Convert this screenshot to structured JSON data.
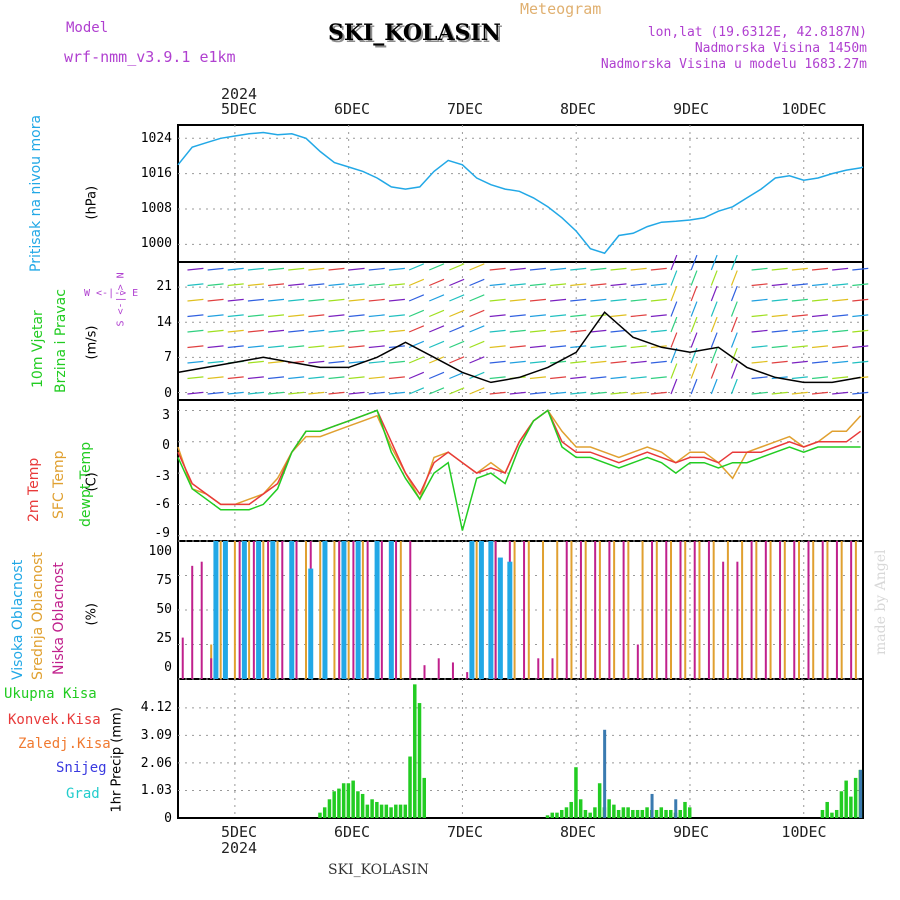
{
  "header": {
    "model_label": "Model",
    "model_name": "wrf-nmm_v3.9.1 e1km",
    "title": "SKI_KOLASIN",
    "subtitle": "Meteogram",
    "coords": "lon,lat (19.6312E, 42.8187N)",
    "elevation": "Nadmorska Visina 1450m",
    "model_elevation": "Nadmorska Visina u modelu 1683.27m",
    "footer": "SKI_KOLASIN",
    "watermark": "made by Angel"
  },
  "colors": {
    "pressure": "#22a8e6",
    "wind_label": "#22cc22",
    "temp2m": "#e83a3a",
    "sfc": "#e0a030",
    "dewpt": "#22cc22",
    "high_cloud": "#22a8e6",
    "mid_cloud": "#e0a030",
    "low_cloud": "#c0208c",
    "precip_total": "#22cc22",
    "convective": "#e83a3a",
    "freezing": "#f07a30",
    "snow": "#3a3ae0",
    "graupel": "#22cccc",
    "model_text": "#b040d0",
    "meteogram_text": "#e0b070"
  },
  "axis": {
    "year": "2024",
    "days": [
      "5DEC",
      "6DEC",
      "7DEC",
      "8DEC",
      "9DEC",
      "10DEC"
    ]
  },
  "panels": {
    "pressure": {
      "label": "Pritisak na nivou mora",
      "unit": "(hPa)",
      "ticks": [
        "1024",
        "1016",
        "1008",
        "1000"
      ]
    },
    "wind": {
      "label1": "10m Vjetar",
      "label2": "Brzina i Pravac",
      "unit": "(m/s)",
      "ticks": [
        "21",
        "14",
        "7",
        "0"
      ],
      "compass": "W  <-|->  E",
      "compass_v": "S <-|-> N"
    },
    "temp": {
      "label1": "2m Temp",
      "label2": "SFC Temp",
      "label3": "dewpt Temp",
      "unit": "(C)",
      "ticks": [
        "3",
        "0",
        "-3",
        "-6",
        "-9"
      ]
    },
    "cloud": {
      "label1": "Visoka Oblacnost",
      "label2": "Srednja Oblacnost",
      "label3": "Niska Oblacnost",
      "unit": "(%)",
      "ticks": [
        "100",
        "75",
        "50",
        "25",
        "0"
      ]
    },
    "precip": {
      "labels": [
        "Ukupna Kisa",
        "Konvek.Kisa",
        "Zaledj.Kisa",
        "Snijeg",
        "Grad"
      ],
      "unit": "1hr Precip (mm)",
      "ticks": [
        "4.12",
        "3.09",
        "2.06",
        "1.03",
        "0"
      ]
    }
  },
  "chart_data": [
    {
      "type": "line",
      "title": "Pritisak na nivou mora",
      "ylabel": "(hPa)",
      "x_unit": "hours since 2024-12-04 12:00",
      "ylim": [
        996,
        1027
      ],
      "series": [
        {
          "name": "Pritisak na nivou mora",
          "x": [
            0,
            3,
            6,
            9,
            12,
            15,
            18,
            21,
            24,
            27,
            30,
            33,
            36,
            39,
            42,
            45,
            48,
            51,
            54,
            57,
            60,
            63,
            66,
            69,
            72,
            75,
            78,
            81,
            84,
            87,
            90,
            93,
            96,
            99,
            102,
            105,
            108,
            111,
            114,
            117,
            120,
            123,
            126,
            129,
            132,
            135,
            138,
            141,
            144,
            144.5
          ],
          "y": [
            1018,
            1022,
            1023,
            1024,
            1024.5,
            1025,
            1025.3,
            1024.8,
            1025,
            1024,
            1021,
            1018.5,
            1017.5,
            1016.5,
            1015,
            1013,
            1012.5,
            1013,
            1016.5,
            1019,
            1018,
            1015,
            1013.5,
            1012.5,
            1012,
            1010.5,
            1008.5,
            1006,
            1003,
            999,
            998,
            1002,
            1002.5,
            1004,
            1005,
            1005.2,
            1005.5,
            1006,
            1007.5,
            1008.5,
            1010.5,
            1012.5,
            1015,
            1015.5,
            1014.5,
            1015,
            1016,
            1016.8,
            1017.3,
            1017.5
          ]
        }
      ]
    },
    {
      "type": "line",
      "title": "10m Vjetar Brzina i Pravac",
      "ylabel": "(m/s)",
      "x_unit": "hours since 2024-12-04 12:00",
      "ylim": [
        -1.5,
        26
      ],
      "series": [
        {
          "name": "10m Vjetar",
          "x": [
            0,
            6,
            12,
            18,
            24,
            30,
            36,
            42,
            48,
            54,
            60,
            66,
            72,
            78,
            84,
            90,
            96,
            102,
            108,
            114,
            120,
            126,
            132,
            138,
            144
          ],
          "y": [
            4,
            5,
            6,
            7,
            6,
            5,
            5,
            7,
            10,
            7,
            4,
            2,
            3,
            5,
            8,
            16,
            11,
            9,
            8,
            9,
            5,
            3,
            2,
            2,
            3
          ]
        }
      ]
    },
    {
      "type": "line",
      "title": "2m Temp / SFC Temp / dewpt Temp",
      "ylabel": "(C)",
      "x_unit": "hours since 2024-12-04 12:00",
      "ylim": [
        -9.5,
        4
      ],
      "series": [
        {
          "name": "2m Temp",
          "x": [
            0,
            3,
            6,
            9,
            12,
            15,
            18,
            21,
            24,
            27,
            30,
            33,
            36,
            39,
            42,
            45,
            48,
            51,
            54,
            57,
            60,
            63,
            66,
            69,
            72,
            75,
            78,
            81,
            84,
            87,
            90,
            93,
            96,
            99,
            102,
            105,
            108,
            111,
            114,
            117,
            120,
            123,
            126,
            129,
            132,
            135,
            138,
            141,
            144
          ],
          "y": [
            -1,
            -4,
            -5,
            -6,
            -6,
            -6,
            -5,
            -4,
            -1,
            1,
            1,
            1.5,
            2,
            2.5,
            3,
            0,
            -3,
            -5,
            -2,
            -1,
            -2,
            -3,
            -2.5,
            -3,
            0,
            2,
            3,
            0,
            -1,
            -1,
            -1.5,
            -2,
            -1.5,
            -1,
            -1.5,
            -2,
            -1.5,
            -1.5,
            -2,
            -1,
            -1,
            -1,
            -0.5,
            0,
            -0.5,
            0,
            0,
            0,
            1
          ]
        },
        {
          "name": "SFC Temp",
          "x": [
            0,
            3,
            6,
            9,
            12,
            15,
            18,
            21,
            24,
            27,
            30,
            33,
            36,
            39,
            42,
            45,
            48,
            51,
            54,
            57,
            60,
            63,
            66,
            69,
            72,
            75,
            78,
            81,
            84,
            87,
            90,
            93,
            96,
            99,
            102,
            105,
            108,
            111,
            114,
            117,
            120,
            123,
            126,
            129,
            132,
            135,
            138,
            141,
            144
          ],
          "y": [
            -0.5,
            -4.5,
            -5,
            -6,
            -6,
            -5.5,
            -5,
            -3.5,
            -1,
            0.5,
            0.5,
            1,
            1.5,
            2,
            2.5,
            -0.5,
            -3,
            -5.5,
            -1.5,
            -1,
            -2,
            -3,
            -2,
            -3,
            0,
            2,
            3,
            1,
            -0.5,
            -0.5,
            -1,
            -1.5,
            -1,
            -0.5,
            -1,
            -2,
            -1,
            -1,
            -2,
            -3.5,
            -1,
            -0.5,
            0,
            0.5,
            -0.5,
            0,
            1,
            1,
            2.5
          ]
        },
        {
          "name": "dewpt Temp",
          "x": [
            0,
            3,
            6,
            9,
            12,
            15,
            18,
            21,
            24,
            27,
            30,
            33,
            36,
            39,
            42,
            45,
            48,
            51,
            54,
            57,
            60,
            63,
            66,
            69,
            72,
            75,
            78,
            81,
            84,
            87,
            90,
            93,
            96,
            99,
            102,
            105,
            108,
            111,
            114,
            117,
            120,
            123,
            126,
            129,
            132,
            135,
            138,
            141,
            144
          ],
          "y": [
            -1.5,
            -4.5,
            -5.5,
            -6.5,
            -6.5,
            -6.5,
            -6,
            -4.5,
            -1,
            1,
            1,
            1.5,
            2,
            2.5,
            3,
            -1,
            -3.5,
            -5.5,
            -3,
            -2,
            -8.5,
            -3.5,
            -3,
            -4,
            -0.5,
            2,
            3,
            -0.5,
            -1.5,
            -1.5,
            -2,
            -2.5,
            -2,
            -1.5,
            -2,
            -3,
            -2,
            -2,
            -2.5,
            -2,
            -2,
            -1.5,
            -1,
            -0.5,
            -1,
            -0.5,
            -0.5,
            -0.5,
            -0.5
          ]
        }
      ]
    },
    {
      "type": "bar",
      "title": "Visoka / Srednja / Niska Oblacnost",
      "ylabel": "(%)",
      "x_unit": "hours since 2024-12-04 12:00",
      "ylim": [
        0,
        100
      ],
      "series": [
        {
          "name": "Visoka Oblacnost",
          "x": [
            8,
            10,
            14,
            17,
            20,
            24,
            28,
            31,
            35,
            38,
            42,
            45,
            62,
            64,
            66,
            68,
            70
          ],
          "y": [
            100,
            100,
            100,
            100,
            100,
            100,
            80,
            100,
            100,
            100,
            100,
            100,
            100,
            100,
            100,
            88,
            85
          ]
        },
        {
          "name": "Srednja Oblacnost",
          "x": [
            7,
            9,
            12,
            15,
            18,
            21,
            24,
            27,
            30,
            33,
            36,
            39,
            42,
            45,
            47,
            63,
            67,
            71,
            74,
            77,
            80,
            83,
            86,
            89,
            92,
            95,
            98,
            101,
            104,
            107,
            110,
            113,
            116,
            119,
            122,
            125,
            128,
            131,
            134,
            137,
            140,
            143
          ],
          "y": [
            25,
            100,
            100,
            100,
            100,
            100,
            100,
            100,
            100,
            100,
            100,
            100,
            100,
            100,
            100,
            100,
            100,
            100,
            100,
            100,
            100,
            100,
            100,
            100,
            100,
            100,
            100,
            100,
            100,
            100,
            100,
            100,
            100,
            100,
            100,
            100,
            100,
            100,
            100,
            100,
            100,
            100
          ]
        },
        {
          "name": "Niska Oblacnost",
          "x": [
            1,
            3,
            5,
            7,
            10,
            13,
            16,
            19,
            22,
            25,
            28,
            31,
            34,
            37,
            40,
            43,
            46,
            49,
            52,
            55,
            58,
            61,
            64,
            67,
            70,
            73,
            76,
            79,
            82,
            85,
            88,
            91,
            94,
            97,
            100,
            103,
            106,
            109,
            112,
            115,
            118,
            121,
            124,
            127,
            130,
            133,
            136,
            139,
            142
          ],
          "y": [
            30,
            82,
            85,
            15,
            100,
            100,
            100,
            100,
            100,
            100,
            100,
            100,
            100,
            100,
            100,
            100,
            100,
            100,
            10,
            15,
            12,
            5,
            100,
            100,
            100,
            100,
            15,
            15,
            100,
            100,
            100,
            100,
            100,
            25,
            100,
            100,
            100,
            100,
            100,
            85,
            85,
            100,
            100,
            100,
            100,
            100,
            100,
            100,
            100
          ]
        }
      ]
    },
    {
      "type": "bar",
      "title": "1hr Precip",
      "ylabel": "1hr Precip (mm)",
      "x_unit": "hours since 2024-12-04 12:00",
      "ylim": [
        0,
        5.2
      ],
      "series": [
        {
          "name": "Ukupna Kisa",
          "x": [
            30,
            31,
            32,
            33,
            34,
            35,
            36,
            37,
            38,
            39,
            40,
            41,
            42,
            43,
            44,
            45,
            46,
            47,
            48,
            49,
            50,
            51,
            52,
            78,
            79,
            80,
            81,
            82,
            83,
            84,
            85,
            86,
            87,
            88,
            89,
            90,
            91,
            92,
            93,
            94,
            95,
            96,
            97,
            98,
            99,
            100,
            101,
            102,
            103,
            104,
            105,
            106,
            107,
            108,
            136,
            137,
            138,
            139,
            140,
            141,
            142,
            143,
            144
          ],
          "y": [
            0.2,
            0.4,
            0.7,
            1.0,
            1.1,
            1.3,
            1.3,
            1.4,
            1.0,
            0.9,
            0.5,
            0.7,
            0.6,
            0.5,
            0.5,
            0.4,
            0.5,
            0.5,
            0.5,
            2.3,
            5.0,
            4.3,
            1.5,
            0.1,
            0.2,
            0.2,
            0.3,
            0.4,
            0.6,
            1.9,
            0.7,
            0.3,
            0.2,
            0.4,
            1.3,
            0.4,
            0.7,
            0.5,
            0.3,
            0.4,
            0.4,
            0.3,
            0.3,
            0.3,
            0.4,
            0.3,
            0.3,
            0.4,
            0.3,
            0.3,
            0.2,
            0.3,
            0.6,
            0.4,
            0.3,
            0.6,
            0.2,
            0.3,
            1.0,
            1.4,
            0.8,
            1.5,
            1.8
          ]
        },
        {
          "name": "Snijeg",
          "x": [
            90,
            100,
            105,
            144
          ],
          "y": [
            3.3,
            0.9,
            0.7,
            1.8
          ]
        }
      ]
    }
  ]
}
